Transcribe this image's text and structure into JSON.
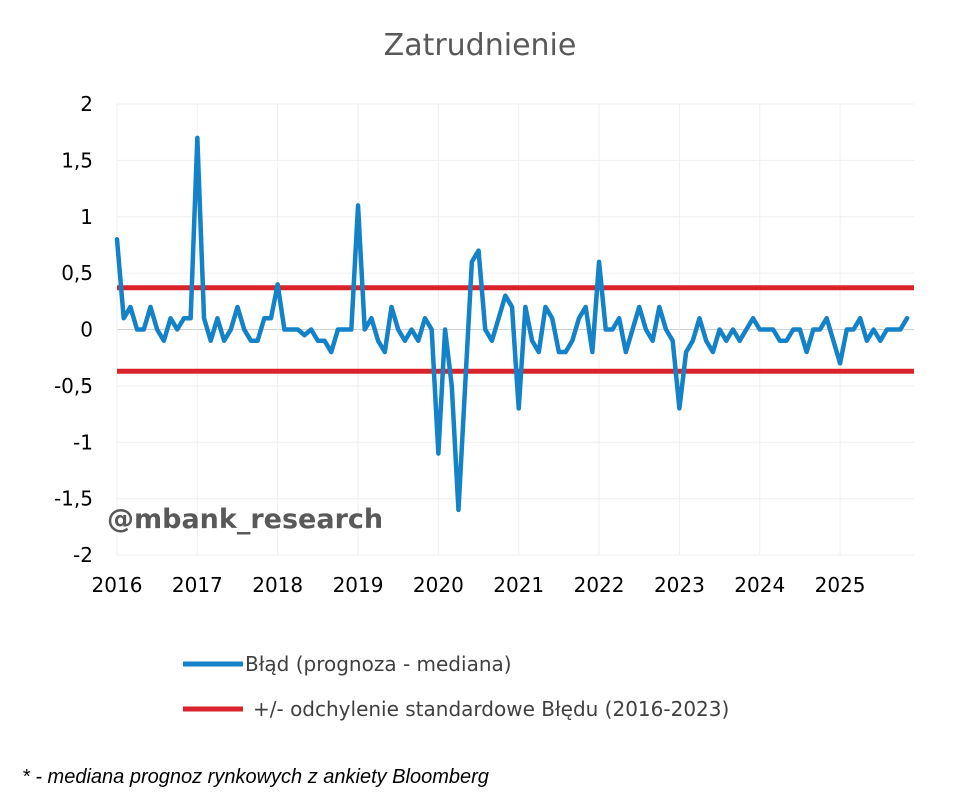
{
  "chart_data": {
    "type": "line",
    "title": "Zatrudnienie",
    "watermark": "@mbank_research",
    "footnote": "* - mediana prognoz rynkowych z ankiety Bloomberg",
    "ylim": [
      -2,
      2
    ],
    "yticks": [
      2,
      1.5,
      1,
      0.5,
      0,
      -0.5,
      -1,
      -1.5,
      -2
    ],
    "ytick_labels": [
      "2",
      "1,5",
      "1",
      "0,5",
      "0",
      "-0,5",
      "-1",
      "-1,5",
      "-2"
    ],
    "xlim": [
      2016,
      2025.92
    ],
    "xticks": [
      2016,
      2017,
      2018,
      2019,
      2020,
      2021,
      2022,
      2023,
      2024,
      2025
    ],
    "xtick_labels": [
      "2016",
      "2017",
      "2018",
      "2019",
      "2020",
      "2021",
      "2022",
      "2023",
      "2024",
      "2025"
    ],
    "grid": true,
    "legend_position": "bottom",
    "x_start": 2016.0,
    "x_step_months": 1,
    "series": [
      {
        "name": "Błąd (prognoza - mediana)",
        "color": "#1382C8",
        "values": [
          0.8,
          0.1,
          0.2,
          0.0,
          0.0,
          0.2,
          0.0,
          -0.1,
          0.1,
          0.0,
          0.1,
          0.1,
          1.7,
          0.1,
          -0.1,
          0.1,
          -0.1,
          0.0,
          0.2,
          0.0,
          -0.1,
          -0.1,
          0.1,
          0.1,
          0.4,
          0.0,
          0.0,
          0.0,
          -0.05,
          0.0,
          -0.1,
          -0.1,
          -0.2,
          0.0,
          0.0,
          0.0,
          1.1,
          0.0,
          0.1,
          -0.1,
          -0.2,
          0.2,
          0.0,
          -0.1,
          0.0,
          -0.1,
          0.1,
          0.0,
          -1.1,
          0.0,
          -0.5,
          -1.6,
          -0.5,
          0.6,
          0.7,
          0.0,
          -0.1,
          0.1,
          0.3,
          0.2,
          -0.7,
          0.2,
          -0.1,
          -0.2,
          0.2,
          0.1,
          -0.2,
          -0.2,
          -0.1,
          0.1,
          0.2,
          -0.2,
          0.6,
          0.0,
          0.0,
          0.1,
          -0.2,
          0.0,
          0.2,
          0.0,
          -0.1,
          0.2,
          0.0,
          -0.1,
          -0.7,
          -0.2,
          -0.1,
          0.1,
          -0.1,
          -0.2,
          0.0,
          -0.1,
          0.0,
          -0.1,
          0.0,
          0.1,
          0.0,
          0.0,
          0.0,
          -0.1,
          -0.1,
          0.0,
          0.0,
          -0.2,
          0.0,
          0.0,
          0.1,
          -0.1,
          -0.3,
          0.0,
          0.0,
          0.1,
          -0.1,
          0.0,
          -0.1,
          0.0,
          0.0,
          0.0,
          0.1
        ]
      },
      {
        "name": "+/- odchylenie standardowe Błędu (2016-2023)",
        "color": "#D9222A",
        "values": [
          0.37,
          -0.37
        ]
      }
    ]
  }
}
